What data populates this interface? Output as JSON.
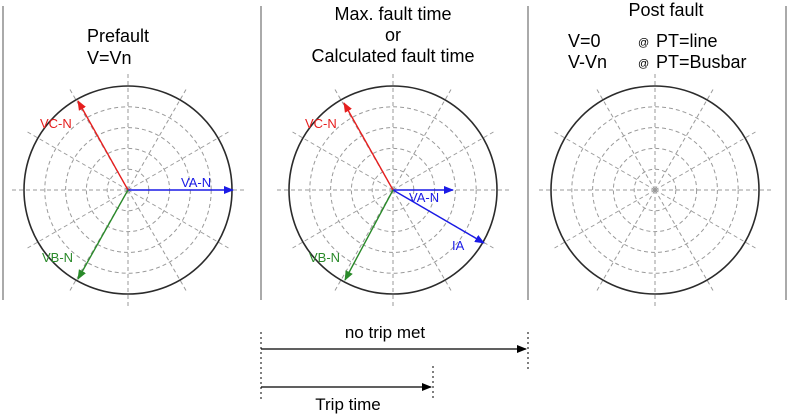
{
  "colors": {
    "va": "#1a1ae6",
    "vb": "#2a8a2a",
    "vc": "#e61e1e",
    "ia": "#1a1ae6",
    "circle": "#2b2b2b",
    "grid": "#9a9a9a",
    "divider": "#555555"
  },
  "panels": {
    "prefault": {
      "title": "Prefault",
      "subtitle": "V=Vn",
      "label_va": "VA-N",
      "label_vb": "VB-N",
      "label_vc": "VC-N"
    },
    "fault": {
      "title_line1": "Max. fault time",
      "title_line2": "or",
      "title_line3": "Calculated fault time",
      "label_va": "VA-N",
      "label_vb": "VB-N",
      "label_vc": "VC-N",
      "label_ia": "IA"
    },
    "postfault": {
      "title": "Post fault",
      "row1_v": "V=0",
      "row1_at": "@",
      "row1_pt": "PT=line",
      "row2_v": "V-Vn",
      "row2_at": "@",
      "row2_pt": "PT=Busbar"
    }
  },
  "timeline": {
    "no_trip_label": "no trip met",
    "trip_label": "Trip time"
  }
}
